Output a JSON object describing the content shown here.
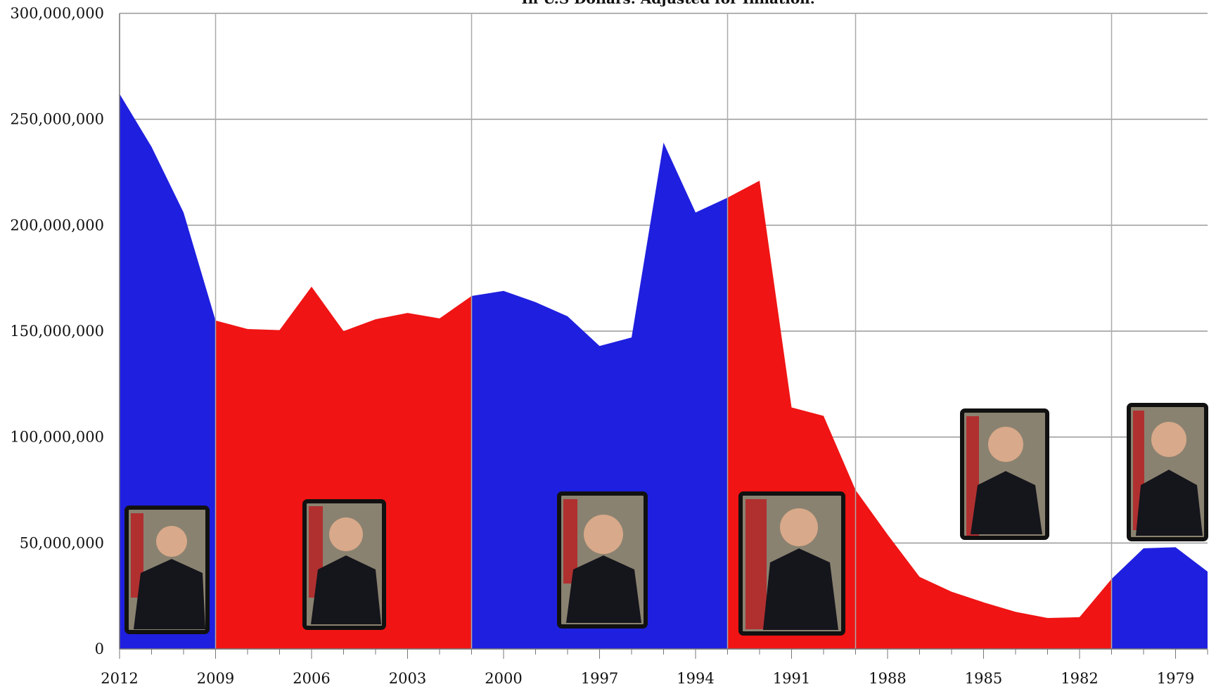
{
  "chart_data": {
    "type": "area",
    "subtitle": "In U.S Dollars. Adjusted for Inflation.",
    "x": [
      2012,
      2011,
      2010,
      2009,
      2008,
      2007,
      2006,
      2005,
      2004,
      2003,
      2002,
      2001,
      2000,
      1999,
      1998,
      1997,
      1996,
      1995,
      1994,
      1993,
      1992,
      1991,
      1990,
      1989,
      1988,
      1987,
      1986,
      1985,
      1984,
      1983,
      1982,
      1981,
      1980,
      1979,
      1978
    ],
    "values": [
      262000000,
      237000000,
      206000000,
      155000000,
      151000000,
      150500000,
      171000000,
      150000000,
      155600000,
      158600000,
      156000000,
      166600000,
      169000000,
      163700000,
      157000000,
      143000000,
      147000000,
      239000000,
      206000000,
      213000000,
      221000000,
      114000000,
      110000000,
      75000000,
      54000000,
      34000000,
      27000000,
      22000000,
      17500000,
      14600000,
      15000000,
      33000000,
      47500000,
      48000000,
      36500000
    ],
    "area_colors": [
      "#1f1fe0",
      "#1f1fe0",
      "#1f1fe0",
      "#f01414",
      "#f01414",
      "#f01414",
      "#f01414",
      "#f01414",
      "#f01414",
      "#f01414",
      "#f01414",
      "#1f1fe0",
      "#1f1fe0",
      "#1f1fe0",
      "#1f1fe0",
      "#1f1fe0",
      "#1f1fe0",
      "#1f1fe0",
      "#1f1fe0",
      "#f01414",
      "#f01414",
      "#f01414",
      "#f01414",
      "#f01414",
      "#f01414",
      "#f01414",
      "#f01414",
      "#f01414",
      "#f01414",
      "#f01414",
      "#f01414",
      "#1f1fe0",
      "#1f1fe0",
      "#1f1fe0",
      "#1f1fe0"
    ],
    "xlim": [
      2012,
      1978
    ],
    "xticks": [
      2012,
      2009,
      2006,
      2003,
      2000,
      1997,
      1994,
      1991,
      1988,
      1985,
      1982,
      1979
    ],
    "vertical_grid": [
      2009,
      2001,
      1993,
      1989,
      1981
    ],
    "ylim": [
      0,
      300000000
    ],
    "yticks": [
      0,
      {
        "value": 50000000,
        "label": "50,000,000"
      },
      {
        "value": 100000000,
        "label": "100,000,000"
      },
      {
        "value": 150000000,
        "label": "150,000,000"
      },
      {
        "value": 200000000,
        "label": "200,000,000"
      },
      {
        "value": 250000000,
        "label": "250,000,000"
      },
      {
        "value": 300000000,
        "label": "300,000,000"
      }
    ],
    "grid": true
  }
}
